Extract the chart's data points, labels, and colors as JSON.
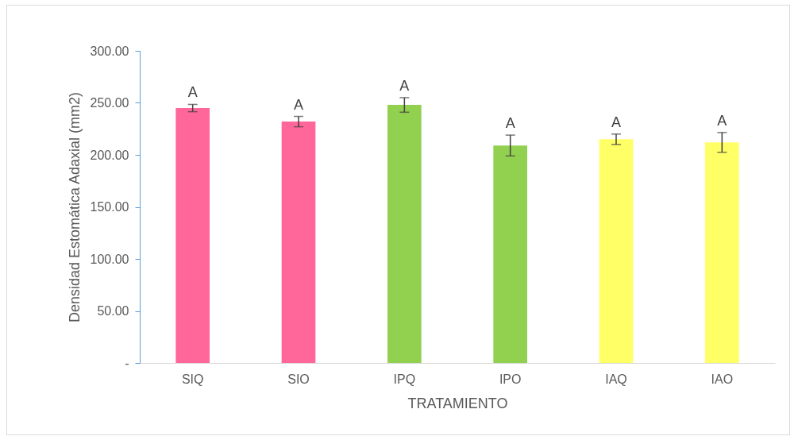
{
  "chart_data": {
    "type": "bar",
    "xlabel": "TRATAMIENTO",
    "ylabel": "Densidad Estomática Adaxial (mm2)",
    "categories": [
      "SIQ",
      "SIO",
      "IPQ",
      "IPO",
      "IAQ",
      "IAO"
    ],
    "values": [
      245,
      232,
      248,
      209,
      215,
      212
    ],
    "colors": [
      "#ff6699",
      "#ff6699",
      "#92d050",
      "#92d050",
      "#ffff66",
      "#ffff66"
    ],
    "errors": [
      3.5,
      5,
      7,
      10,
      5,
      9.5
    ],
    "ylim": [
      0,
      300
    ],
    "yticks": [
      {
        "value": 0,
        "label": "-"
      },
      {
        "value": 50,
        "label": "50.00"
      },
      {
        "value": 100,
        "label": "100.00"
      },
      {
        "value": 150,
        "label": "150.00"
      },
      {
        "value": 200,
        "label": "200.00"
      },
      {
        "value": 250,
        "label": "250.00"
      },
      {
        "value": 300,
        "label": "300.00"
      }
    ],
    "grid": false,
    "annotations": [
      "A",
      "A",
      "A",
      "A",
      "A",
      "A"
    ]
  }
}
